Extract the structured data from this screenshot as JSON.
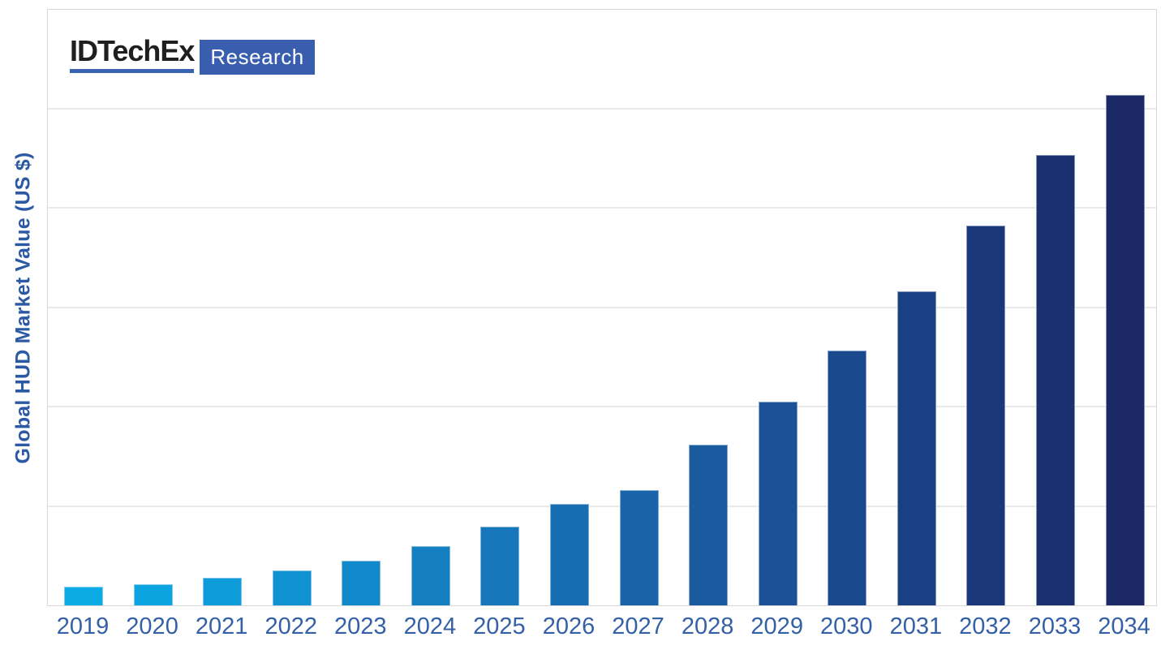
{
  "logo": {
    "brand": "IDTechEx",
    "sub": "Research",
    "brand_color": "#1F1F1F",
    "underline_color": "#3A63B1",
    "box_color": "#3A5EAE"
  },
  "colors": {
    "axis_title_blue": "#2C59A4",
    "tick_label_blue": "#3460A8",
    "frame_border": "#D8D8D8",
    "gridline": "#E9E9E9",
    "background": "#FFFFFF"
  },
  "chart_data": {
    "type": "bar",
    "title": "",
    "xlabel": "",
    "ylabel": "Global HUD Market Value (US $)",
    "categories": [
      "2019",
      "2020",
      "2021",
      "2022",
      "2023",
      "2024",
      "2025",
      "2026",
      "2027",
      "2028",
      "2029",
      "2030",
      "2031",
      "2032",
      "2033",
      "2034"
    ],
    "values_pct_of_max": [
      3.7,
      4.1,
      5.4,
      6.8,
      8.7,
      11.6,
      15.4,
      19.9,
      22.6,
      31.5,
      39.9,
      49.9,
      61.5,
      74.4,
      88.2,
      100
    ],
    "bar_colors": [
      "#0BACE6",
      "#0CA4E0",
      "#0E9BD9",
      "#1092D2",
      "#1289CA",
      "#1480C2",
      "#1677BA",
      "#186DB2",
      "#1964A9",
      "#1A5BA0",
      "#1B5297",
      "#1B498D",
      "#1A4083",
      "#1A3879",
      "#1A306F",
      "#1B2964"
    ],
    "color_gradient": {
      "start": "#0BACE6",
      "end": "#1B2964"
    },
    "grid": "horizontal",
    "gridline_count": 5,
    "y_tick_labels": "none",
    "x_tick_labels": "years",
    "legend": "none",
    "ylim_note_units_shown": "none"
  }
}
